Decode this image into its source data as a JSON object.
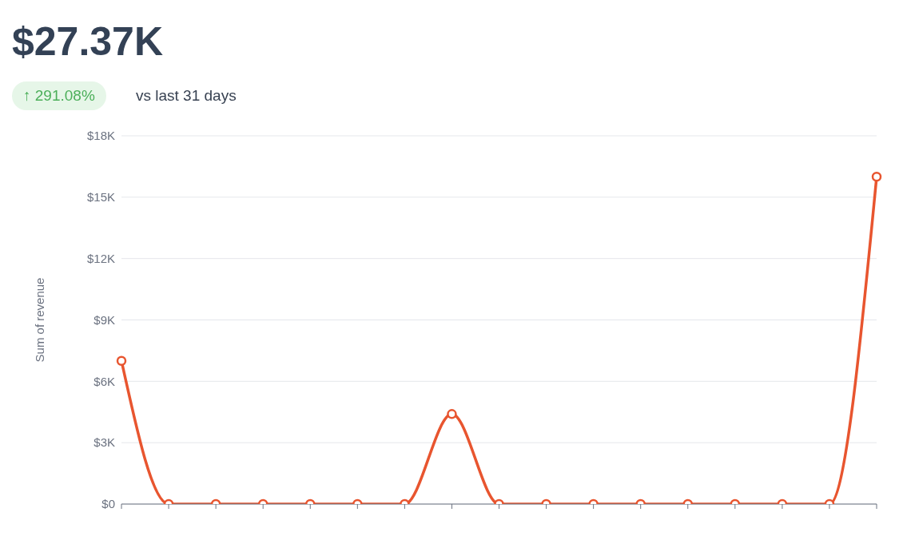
{
  "chart_data": {
    "type": "line",
    "title": "$27.37K",
    "annotations": [
      "↑ 291.08%",
      "vs last 31 days"
    ],
    "ylabel": "Sum of revenue",
    "categories": [
      null,
      null,
      null,
      null,
      null,
      null,
      null,
      null,
      null,
      null,
      null,
      null,
      null,
      null,
      null,
      null,
      null
    ],
    "series": [
      {
        "color": "#e8552f",
        "values": [
          7000,
          0,
          0,
          0,
          0,
          0,
          0,
          4400,
          0,
          0,
          0,
          0,
          0,
          0,
          0,
          0,
          16000
        ]
      }
    ],
    "ylim": [
      0,
      18000
    ],
    "yticks": [
      {
        "value": 0,
        "label": "$0"
      },
      {
        "value": 3000,
        "label": "$3K"
      },
      {
        "value": 6000,
        "label": "$6K"
      },
      {
        "value": 9000,
        "label": "$9K"
      },
      {
        "value": 12000,
        "label": "$12K"
      },
      {
        "value": 15000,
        "label": "$15K"
      },
      {
        "value": 18000,
        "label": "$18K"
      }
    ],
    "grid": "y",
    "marker": "circle",
    "line_style": "solid",
    "legend": false
  }
}
